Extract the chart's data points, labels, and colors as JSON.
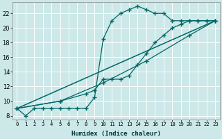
{
  "xlabel": "Humidex (Indice chaleur)",
  "bg_color": "#cce8e8",
  "grid_color": "#ffffff",
  "line_color": "#006666",
  "xlim": [
    -0.5,
    23.5
  ],
  "ylim": [
    7.5,
    23.5
  ],
  "xticks": [
    0,
    1,
    2,
    3,
    4,
    5,
    6,
    7,
    8,
    9,
    10,
    11,
    12,
    13,
    14,
    15,
    16,
    17,
    18,
    19,
    20,
    21,
    22,
    23
  ],
  "yticks": [
    8,
    10,
    12,
    14,
    16,
    18,
    20,
    22
  ],
  "series": [
    {
      "x": [
        0,
        1,
        2,
        3,
        4,
        5,
        6,
        7,
        8,
        9,
        10,
        11,
        12,
        13,
        14,
        15,
        16,
        17,
        18,
        19,
        20,
        21,
        22,
        23
      ],
      "y": [
        9,
        8,
        9,
        9,
        9,
        9,
        9,
        9,
        9,
        10.5,
        18.5,
        21,
        22,
        22.5,
        23,
        22.5,
        22,
        22,
        21,
        21,
        21,
        21,
        21,
        21
      ],
      "marker": "+",
      "markersize": 4,
      "lw": 0.9
    },
    {
      "x": [
        0,
        23
      ],
      "y": [
        9,
        21
      ],
      "marker": "None",
      "markersize": 0,
      "lw": 1.1
    },
    {
      "x": [
        0,
        5,
        10,
        15,
        20,
        23
      ],
      "y": [
        9,
        10,
        12.5,
        15.5,
        19,
        21
      ],
      "marker": "+",
      "markersize": 4,
      "lw": 0.9
    },
    {
      "x": [
        0,
        5,
        8,
        9,
        10,
        11,
        12,
        13,
        14,
        15,
        16,
        17,
        18,
        19,
        20,
        21,
        22,
        23
      ],
      "y": [
        9,
        10,
        11,
        11.5,
        13,
        13,
        13,
        13.5,
        15,
        16.5,
        18,
        19,
        20,
        20.5,
        21,
        21,
        21,
        21
      ],
      "marker": "+",
      "markersize": 4,
      "lw": 0.9
    }
  ]
}
